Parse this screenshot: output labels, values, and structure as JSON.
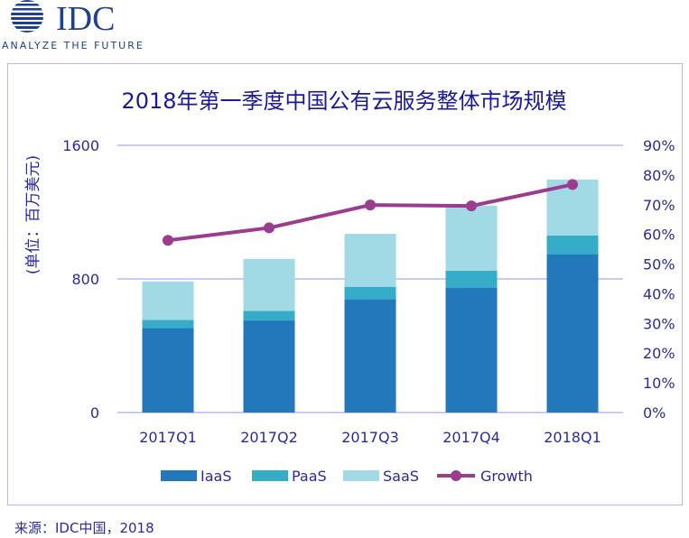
{
  "logo": {
    "brand": "IDC",
    "tagline": "ANALYZE THE FUTURE"
  },
  "source": "来源：IDC中国，2018",
  "colors": {
    "IaaS": "#2378bb",
    "PaaS": "#36adc8",
    "SaaS": "#a1dae5",
    "Growth": "#9b3c8e",
    "grid": "#b8b8f0",
    "text": "#2a2aa8"
  },
  "chart_data": {
    "type": "bar",
    "title": "2018年第一季度中国公有云服务整体市场规模",
    "ylabel": "(单位：百万美元)",
    "ylim": [
      0,
      1600
    ],
    "y_ticks": [
      "0",
      "800",
      "1600"
    ],
    "y2lim": [
      0,
      90
    ],
    "y2_ticks": [
      "0%",
      "10%",
      "20%",
      "30%",
      "40%",
      "50%",
      "60%",
      "70%",
      "80%",
      "90%"
    ],
    "categories": [
      "2017Q1",
      "2017Q2",
      "2017Q3",
      "2017Q4",
      "2018Q1"
    ],
    "series": [
      {
        "name": "IaaS",
        "type": "stacked-bar",
        "values": [
          506,
          551,
          678,
          748,
          948
        ]
      },
      {
        "name": "PaaS",
        "type": "stacked-bar",
        "values": [
          48,
          57,
          75,
          102,
          112
        ]
      },
      {
        "name": "SaaS",
        "type": "stacked-bar",
        "values": [
          231,
          312,
          317,
          389,
          335
        ]
      },
      {
        "name": "Growth",
        "type": "line",
        "axis": "right",
        "unit": "%",
        "values": [
          58.0,
          62.2,
          69.9,
          69.6,
          76.8
        ]
      }
    ],
    "legend": "bottom",
    "grid": true
  }
}
